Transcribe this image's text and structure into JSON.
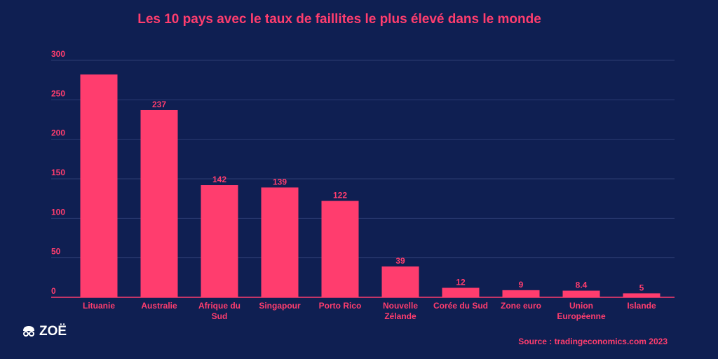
{
  "chart_data": {
    "type": "bar",
    "title": "Les 10 pays avec le taux de faillites le plus élevé dans le monde",
    "categories": [
      [
        "Lituanie"
      ],
      [
        "Australie"
      ],
      [
        "Afrique du",
        "Sud"
      ],
      [
        "Singapour"
      ],
      [
        "Porto Rico"
      ],
      [
        "Nouvelle",
        "Zélande"
      ],
      [
        "Corée du Sud"
      ],
      [
        "Zone euro"
      ],
      [
        "Union",
        "Européenne"
      ],
      [
        "Islande"
      ]
    ],
    "values": [
      282,
      237,
      142,
      139,
      122,
      39,
      12,
      9,
      8.4,
      5
    ],
    "data_labels": [
      "",
      "237",
      "142",
      "139",
      "122",
      "39",
      "12",
      "9",
      "8.4",
      "5"
    ],
    "yticks": [
      "0",
      "50",
      "100",
      "150",
      "200",
      "250",
      "300"
    ],
    "ylim": [
      0,
      300
    ],
    "grid": true,
    "xlabel": "",
    "ylabel": ""
  },
  "source": "Source : tradingeconomics.com 2023",
  "logo": {
    "text": "ZOË",
    "icon": "face-icon"
  },
  "colors": {
    "background": "#0f1f52",
    "bar": "#ff3d6e",
    "text": "#ff3d6e",
    "grid": "#2d3d72"
  }
}
